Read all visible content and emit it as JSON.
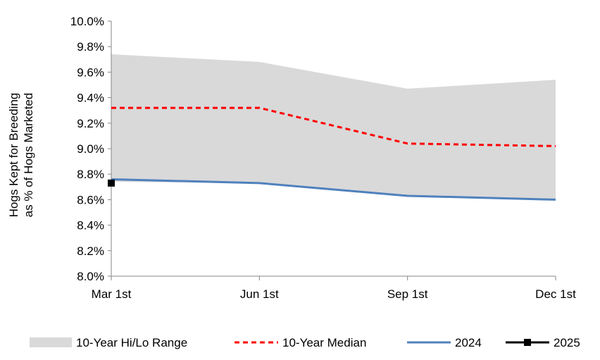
{
  "chart_data": {
    "type": "line",
    "title": "",
    "xlabel": "",
    "ylabel_line1": "Hogs Kept for Breeding",
    "ylabel_line2": "as % of Hogs Marketed",
    "categories": [
      "Mar 1st",
      "Jun 1st",
      "Sep 1st",
      "Dec 1st"
    ],
    "y_ticks": [
      "8.0%",
      "8.2%",
      "8.4%",
      "8.6%",
      "8.8%",
      "9.0%",
      "9.2%",
      "9.4%",
      "9.6%",
      "9.8%",
      "10.0%"
    ],
    "ylim": [
      8.0,
      10.0
    ],
    "grid": false,
    "legend_position": "bottom",
    "range": {
      "name": "10-Year Hi/Lo Range",
      "color": "#d9d9d9",
      "high": [
        9.74,
        9.68,
        9.47,
        9.54
      ],
      "low": [
        8.74,
        8.73,
        8.63,
        8.6
      ]
    },
    "series": [
      {
        "name": "10-Year Median",
        "color": "#ff0000",
        "style": "dashed",
        "values": [
          9.32,
          9.32,
          9.04,
          9.02
        ]
      },
      {
        "name": "2024",
        "color": "#4f81bd",
        "style": "solid",
        "values": [
          8.76,
          8.73,
          8.63,
          8.6
        ]
      },
      {
        "name": "2025",
        "color": "#000000",
        "style": "marker",
        "values": [
          8.73,
          null,
          null,
          null
        ]
      }
    ]
  }
}
